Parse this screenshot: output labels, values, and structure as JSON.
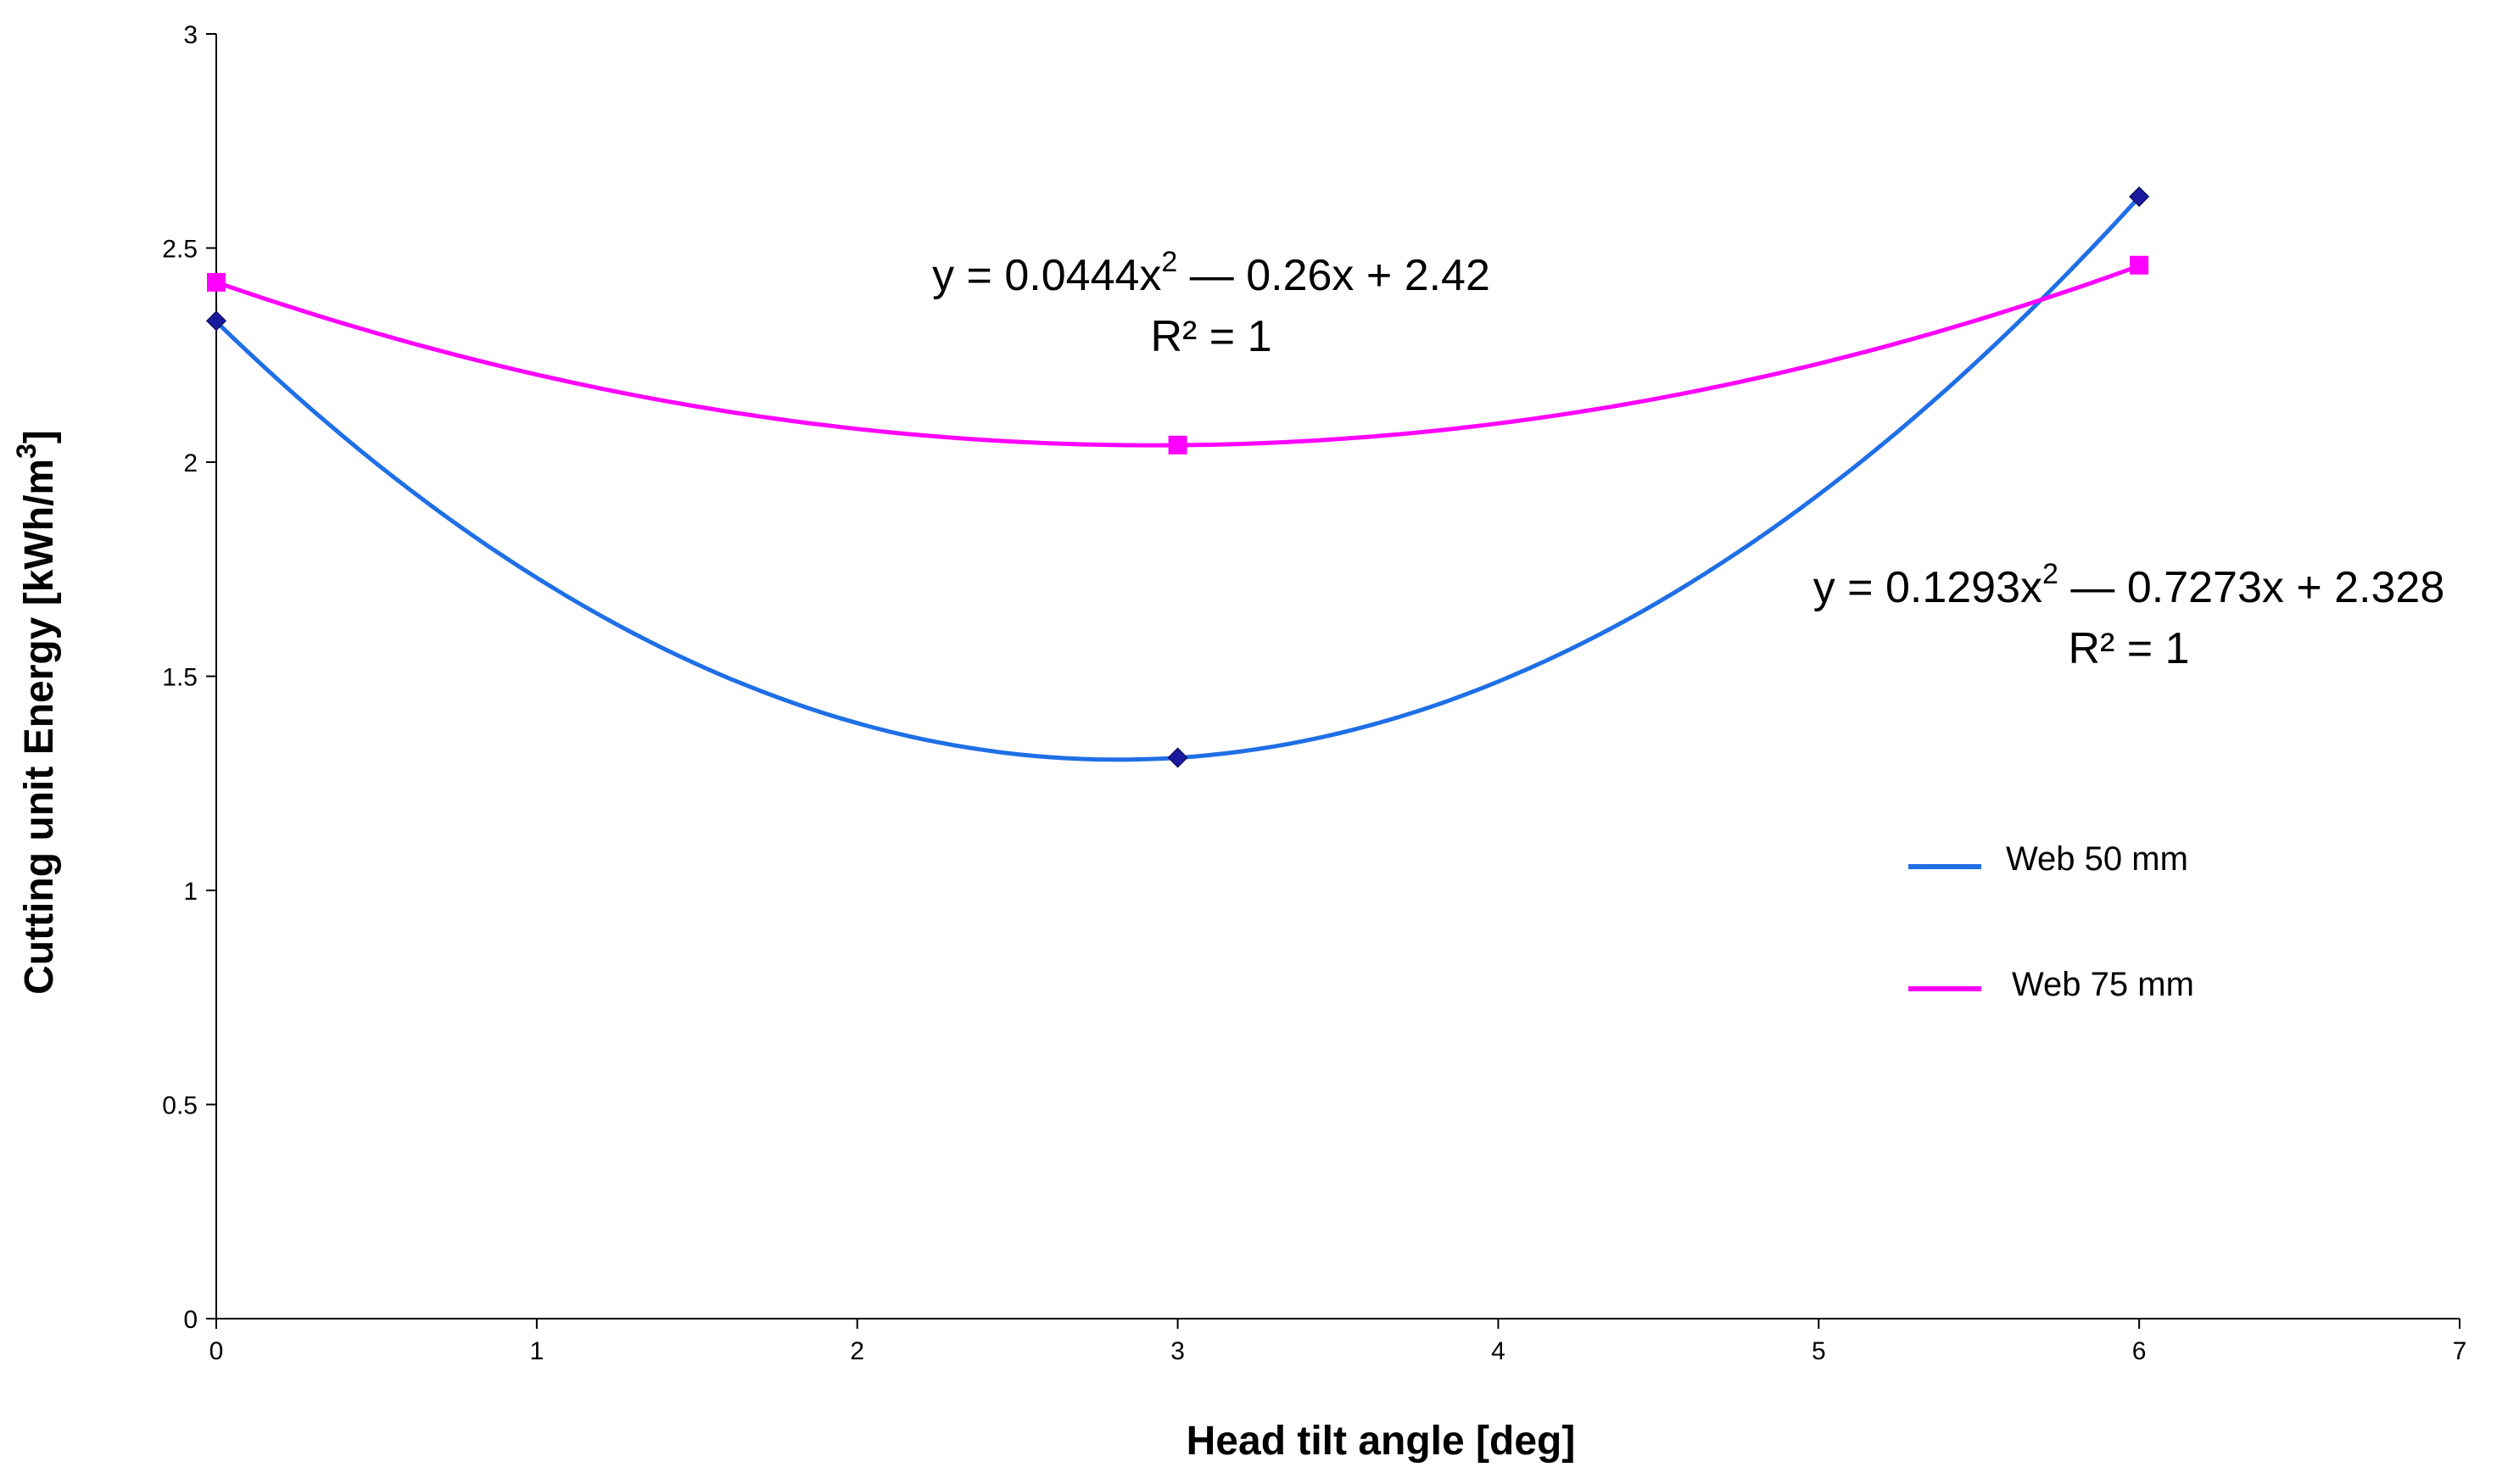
{
  "chart_data": {
    "type": "scatter",
    "xlabel": "Head tilt angle [deg]",
    "ylabel_main": "Cutting unit Energy [kWh/m",
    "ylabel_sup": "3",
    "ylabel_end": "]",
    "xlim": [
      0,
      7
    ],
    "ylim": [
      0,
      3
    ],
    "x_ticks": [
      "0",
      "1",
      "2",
      "3",
      "4",
      "5",
      "6",
      "7"
    ],
    "y_ticks": [
      "0",
      "0.5",
      "1",
      "1.5",
      "2",
      "2.5",
      "3"
    ],
    "grid": false,
    "legend_position": "right",
    "series": [
      {
        "name": "Web 50 mm",
        "color": "#1f6fe6",
        "marker_color": "#1a1aa0",
        "marker": "diamond",
        "x": [
          0,
          3,
          6
        ],
        "y": [
          2.33,
          1.31,
          2.62
        ],
        "trend": {
          "a": 0.1293,
          "b": -0.7273,
          "c": 2.328
        },
        "equation_parts": [
          "y = 0.1293x",
          "2",
          " — 0.7273x + 2.328"
        ],
        "r2": "R² = 1"
      },
      {
        "name": "Web 75 mm",
        "color": "#ff00ff",
        "marker_color": "#ff00ff",
        "marker": "square",
        "x": [
          0,
          3,
          6
        ],
        "y": [
          2.42,
          2.04,
          2.46
        ],
        "trend": {
          "a": 0.0444,
          "b": -0.26,
          "c": 2.42
        },
        "equation_parts": [
          "y = 0.0444x",
          "2",
          " — 0.26x + 2.42"
        ],
        "r2": "R² = 1"
      }
    ]
  }
}
